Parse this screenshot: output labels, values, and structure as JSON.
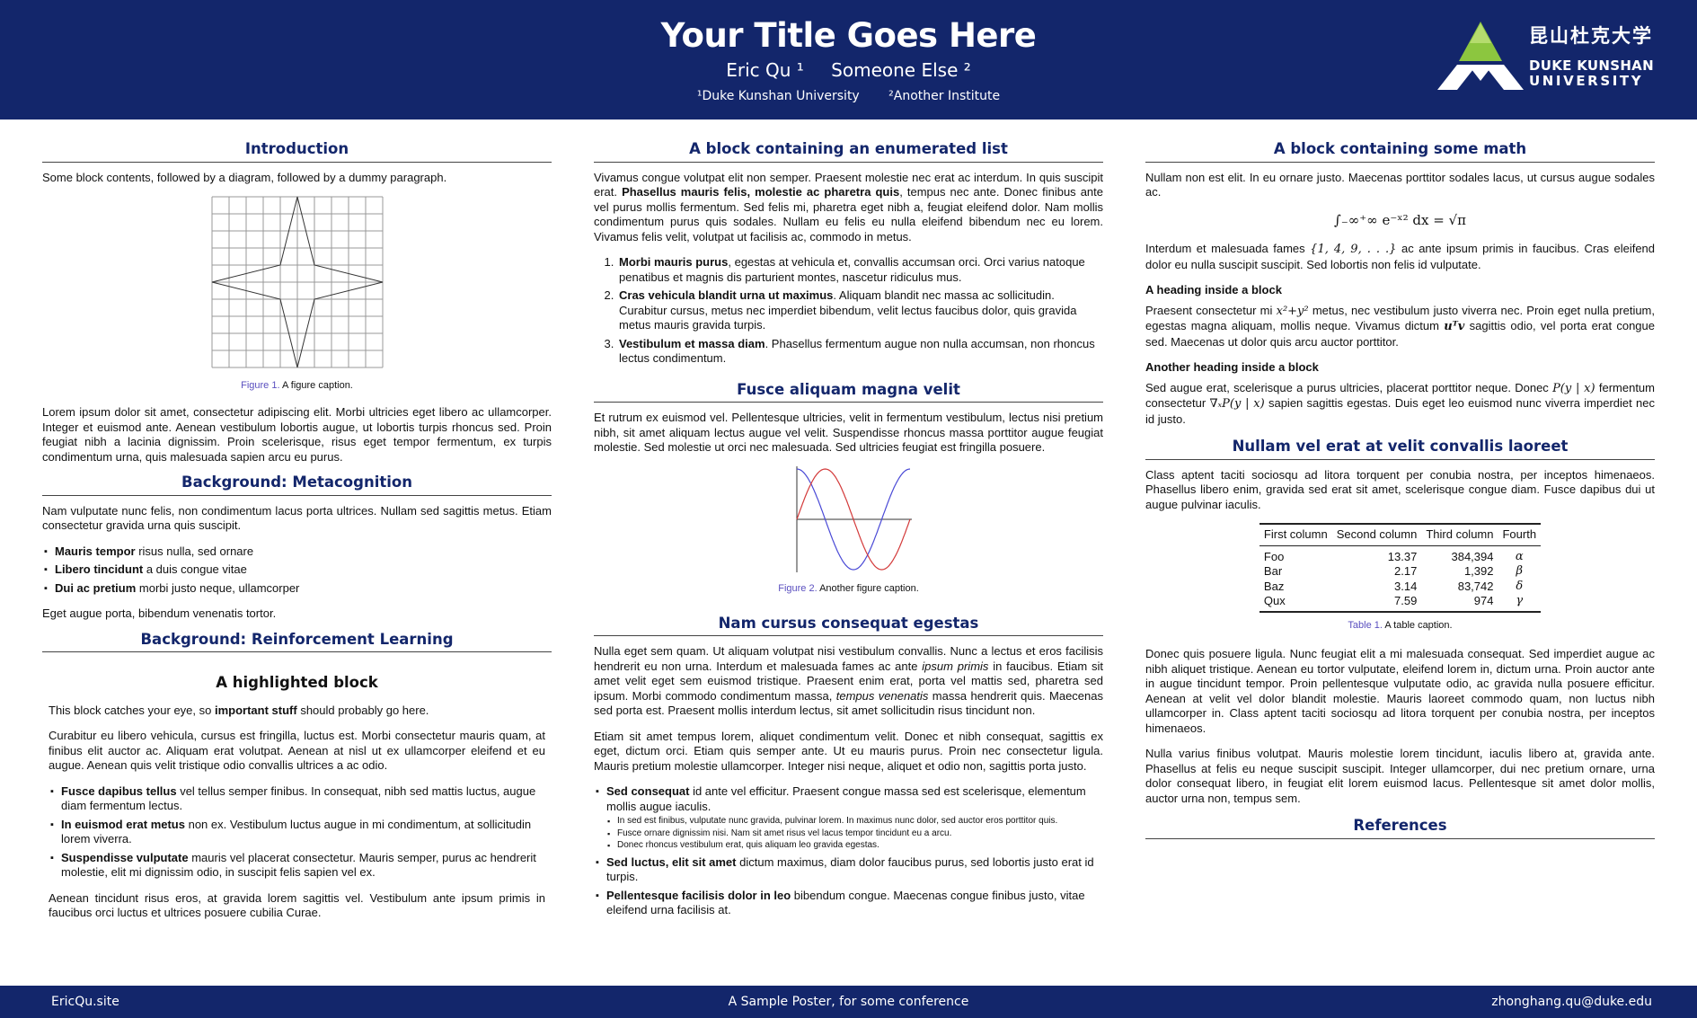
{
  "header": {
    "title": "Your Title Goes Here",
    "authors": [
      "Eric Qu ¹",
      "Someone Else ²"
    ],
    "affiliations": [
      "¹Duke Kunshan University",
      "²Another Institute"
    ],
    "logo": {
      "cn": "昆山杜克大学",
      "en_line1": "DUKE KUNSHAN",
      "en_line2": "UNIVERSITY"
    }
  },
  "footer": {
    "left": "EricQu.site",
    "center": "A Sample Poster, for some conference",
    "right": "zhonghang.qu@duke.edu"
  },
  "col1": {
    "intro_title": "Introduction",
    "intro_text": "Some block contents, followed by a diagram, followed by a dummy paragraph.",
    "fig1_label": "Figure 1.",
    "fig1_caption": " A figure caption.",
    "intro_para": "Lorem ipsum dolor sit amet, consectetur adipiscing elit. Morbi ultricies eget libero ac ullamcorper. Integer et euismod ante. Aenean vestibulum lobortis augue, ut lobortis turpis rhoncus sed. Proin feugiat nibh a lacinia dignissim. Proin scelerisque, risus eget tempor fermentum, ex turpis condimentum urna, quis malesuada sapien arcu eu purus.",
    "meta_title": "Background: Metacognition",
    "meta_text": "Nam vulputate nunc felis, non condimentum lacus porta ultrices. Nullam sed sagittis metus. Etiam consectetur gravida urna quis suscipit.",
    "meta_items": [
      {
        "b": "Mauris tempor",
        "t": " risus nulla, sed ornare"
      },
      {
        "b": "Libero tincidunt",
        "t": " a duis congue vitae"
      },
      {
        "b": "Dui ac pretium",
        "t": " morbi justo neque, ullamcorper"
      }
    ],
    "meta_after": "Eget augue porta, bibendum venenatis tortor.",
    "rl_title": "Background: Reinforcement Learning",
    "hl_title": "A highlighted block",
    "hl_text_pre": "This block catches your eye, so ",
    "hl_text_bold": "important stuff",
    "hl_text_post": " should probably go here.",
    "hl_para": "Curabitur eu libero vehicula, cursus est fringilla, luctus est. Morbi consectetur mauris quam, at finibus elit auctor ac. Aliquam erat volutpat. Aenean at nisl ut ex ullamcorper eleifend et eu augue. Aenean quis velit tristique odio convallis ultrices a ac odio.",
    "hl_items": [
      {
        "b": "Fusce dapibus tellus",
        "t": " vel tellus semper finibus. In consequat, nibh sed mattis luctus, augue diam fermentum lectus."
      },
      {
        "b": "In euismod erat metus",
        "t": " non ex. Vestibulum luctus augue in mi condimentum, at sollicitudin lorem viverra."
      },
      {
        "b": "Suspendisse vulputate",
        "t": " mauris vel placerat consectetur. Mauris semper, purus ac hendrerit molestie, elit mi dignissim odio, in suscipit felis sapien vel ex."
      }
    ],
    "hl_after": "Aenean tincidunt risus eros, at gravida lorem sagittis vel. Vestibulum ante ipsum primis in faucibus orci luctus et ultrices posuere cubilia Curae."
  },
  "col2": {
    "enum_title": "A block containing an enumerated list",
    "enum_para_pre": "Vivamus congue volutpat elit non semper. Praesent molestie nec erat ac interdum. In quis suscipit erat. ",
    "enum_para_bold": "Phasellus mauris felis, molestie ac pharetra quis",
    "enum_para_post": ", tempus nec ante. Donec finibus ante vel purus mollis fermentum. Sed felis mi, pharetra eget nibh a, feugiat eleifend dolor. Nam mollis condimentum purus quis sodales. Nullam eu felis eu nulla eleifend bibendum nec eu lorem. Vivamus felis velit, volutpat ut facilisis ac, commodo in metus.",
    "enum_items": [
      {
        "b": "Morbi mauris purus",
        "t": ", egestas at vehicula et, convallis accumsan orci. Orci varius natoque penatibus et magnis dis parturient montes, nascetur ridiculus mus."
      },
      {
        "b": "Cras vehicula blandit urna ut maximus",
        "t": ". Aliquam blandit nec massa ac sollicitudin. Curabitur cursus, metus nec imperdiet bibendum, velit lectus faucibus dolor, quis gravida metus mauris gravida turpis."
      },
      {
        "b": "Vestibulum et massa diam",
        "t": ". Phasellus fermentum augue non nulla accumsan, non rhoncus lectus condimentum."
      }
    ],
    "fusce_title": "Fusce aliquam magna velit",
    "fusce_para": "Et rutrum ex euismod vel. Pellentesque ultricies, velit in fermentum vestibulum, lectus nisi pretium nibh, sit amet aliquam lectus augue vel velit. Suspendisse rhoncus massa porttitor augue feugiat molestie. Sed molestie ut orci nec malesuada. Sed ultricies feugiat est fringilla posuere.",
    "fig2_label": "Figure 2.",
    "fig2_caption": " Another figure caption.",
    "nam_title": "Nam cursus consequat egestas",
    "nam_para1_a": "Nulla eget sem quam. Ut aliquam volutpat nisi vestibulum convallis. Nunc a lectus et eros facilisis hendrerit eu non urna. Interdum et malesuada fames ac ante ",
    "nam_para1_i1": "ipsum primis",
    "nam_para1_b": " in faucibus. Etiam sit amet velit eget sem euismod tristique. Praesent enim erat, porta vel mattis sed, pharetra sed ipsum. Morbi commodo condimentum massa, ",
    "nam_para1_i2": "tempus venenatis",
    "nam_para1_c": " massa hendrerit quis. Maecenas sed porta est. Praesent mollis interdum lectus, sit amet sollicitudin risus tincidunt non.",
    "nam_para2": "Etiam sit amet tempus lorem, aliquet condimentum velit. Donec et nibh consequat, sagittis ex eget, dictum orci. Etiam quis semper ante. Ut eu mauris purus. Proin nec consectetur ligula. Mauris pretium molestie ullamcorper. Integer nisi neque, aliquet et odio non, sagittis porta justo.",
    "nam_item1_b": "Sed consequat",
    "nam_item1_t": " id ante vel efficitur. Praesent congue massa sed est scelerisque, elementum mollis augue iaculis.",
    "nam_subitems": [
      "In sed est finibus, vulputate nunc gravida, pulvinar lorem. In maximus nunc dolor, sed auctor eros porttitor quis.",
      "Fusce ornare dignissim nisi. Nam sit amet risus vel lacus tempor tincidunt eu a arcu.",
      "Donec rhoncus vestibulum erat, quis aliquam leo gravida egestas."
    ],
    "nam_item2_b": "Sed luctus, elit sit amet",
    "nam_item2_t": " dictum maximus, diam dolor faucibus purus, sed lobortis justo erat id turpis.",
    "nam_item3_b": "Pellentesque facilisis dolor in leo",
    "nam_item3_t": " bibendum congue. Maecenas congue finibus justo, vitae eleifend urna facilisis at."
  },
  "col3": {
    "math_title": "A block containing some math",
    "math_para1": "Nullam non est elit. In eu ornare justo. Maecenas porttitor sodales lacus, ut cursus augue sodales ac.",
    "math_eq": "∫₋∞⁺∞ e⁻ˣ² dx = √π",
    "math_para2_a": "Interdum et malesuada fames ",
    "math_para2_set": "{1, 4, 9, . . .}",
    "math_para2_b": " ac ante ipsum primis in faucibus. Cras eleifend dolor eu nulla suscipit suscipit. Sed lobortis non felis id vulputate.",
    "h1": "A heading inside a block",
    "h1_para_a": "Praesent consectetur mi ",
    "h1_para_math": "x²+y²",
    "h1_para_b": " metus, nec vestibulum justo viverra nec. Proin eget nulla pretium, egestas magna aliquam, mollis neque. Vivamus dictum ",
    "h1_para_math2": "uᵀv",
    "h1_para_c": " sagittis odio, vel porta erat congue sed. Maecenas ut dolor quis arcu auctor porttitor.",
    "h2": "Another heading inside a block",
    "h2_para_a": "Sed augue erat, scelerisque a purus ultricies, placerat porttitor neque. Donec ",
    "h2_para_math": "P(y | x)",
    "h2_para_b": " fermentum consectetur ",
    "h2_para_math2": "∇ₓP(y | x)",
    "h2_para_c": " sapien sagittis egestas. Duis eget leo euismod nunc viverra imperdiet nec id justo.",
    "nullam_title": "Nullam vel erat at velit convallis laoreet",
    "nullam_para": "Class aptent taciti sociosqu ad litora torquent per conubia nostra, per inceptos himenaeos. Phasellus libero enim, gravida sed erat sit amet, scelerisque congue diam. Fusce dapibus dui ut augue pulvinar iaculis.",
    "table_headers": [
      "First column",
      "Second column",
      "Third column",
      "Fourth"
    ],
    "table_rows": [
      [
        "Foo",
        "13.37",
        "384,394",
        "α"
      ],
      [
        "Bar",
        "2.17",
        "1,392",
        "β"
      ],
      [
        "Baz",
        "3.14",
        "83,742",
        "δ"
      ],
      [
        "Qux",
        "7.59",
        "974",
        "γ"
      ]
    ],
    "table_label": "Table 1.",
    "table_caption": " A table caption.",
    "para_a": "Donec quis posuere ligula. Nunc feugiat elit a mi malesuada consequat. Sed imperdiet augue ac nibh aliquet tristique. Aenean eu tortor vulputate, eleifend lorem in, dictum urna. Proin auctor ante in augue tincidunt tempor. Proin pellentesque vulputate odio, ac gravida nulla posuere efficitur. Aenean at velit vel dolor blandit molestie. Mauris laoreet commodo quam, non luctus nibh ullamcorper in. Class aptent taciti sociosqu ad litora torquent per conubia nostra, per inceptos himenaeos.",
    "para_b": "Nulla varius finibus volutpat. Mauris molestie lorem tincidunt, iaculis libero at, gravida ante. Phasellus at felis eu neque suscipit suscipit. Integer ullamcorper, dui nec pretium ornare, urna dolor consequat libero, in feugiat elit lorem euismod lacus. Pellentesque sit amet dolor mollis, auctor urna non, tempus sem.",
    "refs_title": "References"
  },
  "colors": {
    "navy": "#13266b",
    "caption_label": "#5a4fbf",
    "logo_green": "#8cc63f"
  }
}
